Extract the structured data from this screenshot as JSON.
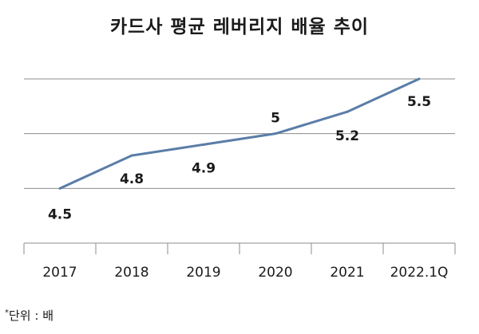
{
  "chart_data": {
    "type": "line",
    "title": "카드사 평균 레버리지 배율 추이",
    "categories": [
      "2017",
      "2018",
      "2019",
      "2020",
      "2021",
      "2022.1Q"
    ],
    "series": [
      {
        "values": [
          4.5,
          4.8,
          4.9,
          5,
          5.2,
          5.5
        ]
      }
    ],
    "data_labels": [
      "4.5",
      "4.8",
      "4.9",
      "5",
      "5.2",
      "5.5"
    ],
    "ylim": [
      4.0,
      5.5
    ],
    "grid": true,
    "line_color": "#5a7da8",
    "gridline_color": "#8c8c8c"
  },
  "footnote": {
    "marker": "*",
    "text": "단위 : 배"
  }
}
